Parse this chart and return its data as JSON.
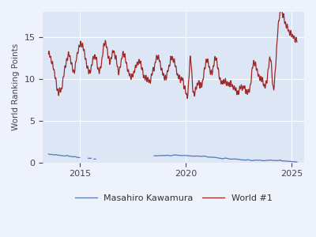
{
  "title": "",
  "ylabel": "World Ranking Points",
  "xlabel": "",
  "background_color": "#dce6f5",
  "figure_background": "#eef2fa",
  "kawamura_color": "#4c72b0",
  "world1_color": "#9b1c1c",
  "legend_labels": [
    "Masahiro Kawamura",
    "World #1"
  ],
  "ylim": [
    0,
    18
  ],
  "yticks": [
    0,
    5,
    10,
    15
  ]
}
